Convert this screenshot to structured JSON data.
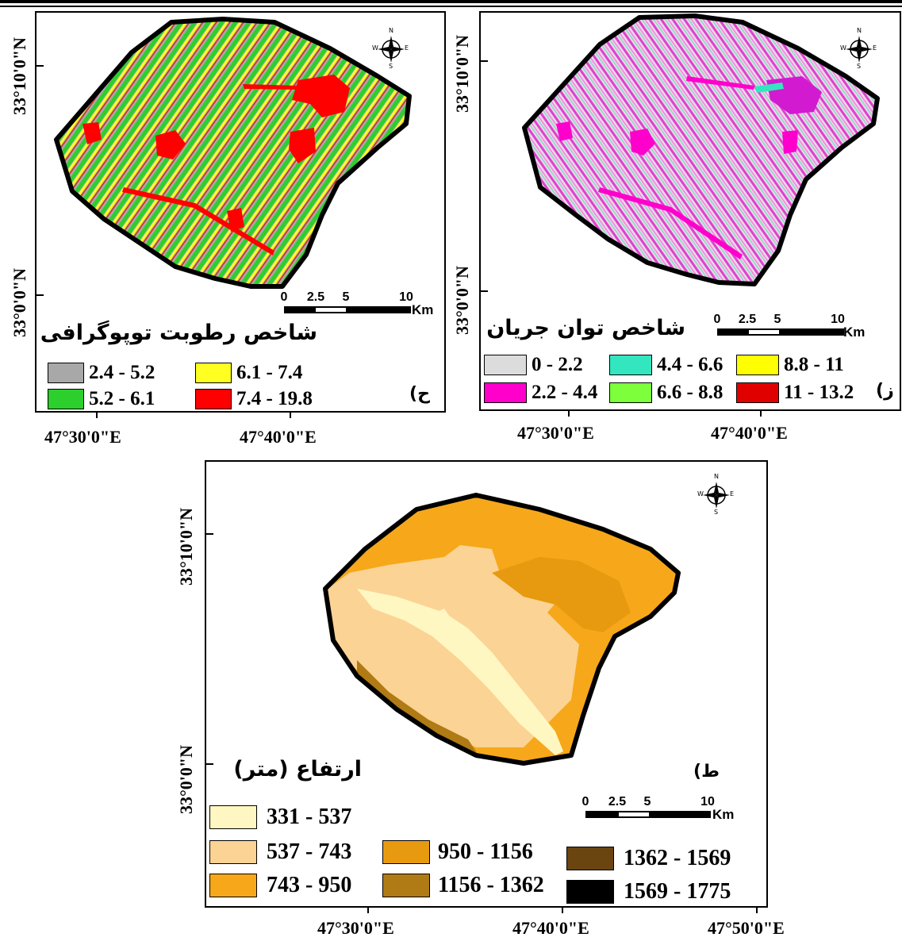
{
  "colors": {
    "twi": [
      "#a8a8a8",
      "#2ccf2c",
      "#ffff22",
      "#ff0000"
    ],
    "spi": [
      "#dcdcdc",
      "#ff00cc",
      "#33e6c0",
      "#7dff3c",
      "#ffff00",
      "#e00000"
    ],
    "dem": [
      "#fff7c2",
      "#fbd394",
      "#f6a81a",
      "#e79a10",
      "#b07a14",
      "#6b4510",
      "#000000"
    ]
  },
  "compass": {
    "n": "N",
    "s": "S",
    "e": "E",
    "w": "W"
  },
  "panel_twi": {
    "title": "شاخص رطوبت توپوگرافی",
    "letter": "(ح",
    "lat_top": "33°10'0\"N",
    "lat_bottom": "33°0'0\"N",
    "lon_left": "47°30'0\"E",
    "lon_right": "47°40'0\"E",
    "scale": {
      "labels": [
        "0",
        "2.5",
        "5",
        "10"
      ],
      "unit": "Km"
    },
    "legend": [
      {
        "label": "2.4 - 5.2"
      },
      {
        "label": "6.1 - 7.4"
      },
      {
        "label": "5.2 - 6.1"
      },
      {
        "label": "7.4 - 19.8"
      }
    ]
  },
  "panel_spi": {
    "title": "شاخص توان جریان",
    "letter": "(ز",
    "lat_top": "33°10'0\"N",
    "lat_bottom": "33°0'0\"N",
    "lon_left": "47°30'0\"E",
    "lon_right": "47°40'0\"E",
    "scale": {
      "labels": [
        "0",
        "2.5",
        "5",
        "10"
      ],
      "unit": "Km"
    },
    "legend": [
      {
        "label": "0 - 2.2"
      },
      {
        "label": "4.4 - 6.6"
      },
      {
        "label": "8.8 - 11"
      },
      {
        "label": "2.2 - 4.4"
      },
      {
        "label": "6.6 - 8.8"
      },
      {
        "label": "11 - 13.2"
      }
    ]
  },
  "panel_dem": {
    "title": "ارتفاع (متر)",
    "letter": "(ط",
    "lat_top": "33°10'0\"N",
    "lat_bottom": "33°0'0\"N",
    "lon_left": "47°30'0\"E",
    "lon_mid": "47°40'0\"E",
    "lon_right": "47°50'0\"E",
    "scale": {
      "labels": [
        "0",
        "2.5",
        "5",
        "10"
      ],
      "unit": "Km"
    },
    "legend": [
      {
        "label": "331 - 537"
      },
      {
        "label": "537 - 743"
      },
      {
        "label": "950 - 1156"
      },
      {
        "label": "1362 - 1569"
      },
      {
        "label": "743 - 950"
      },
      {
        "label": "1156 - 1362"
      },
      {
        "label": "1569 - 1775"
      }
    ]
  }
}
